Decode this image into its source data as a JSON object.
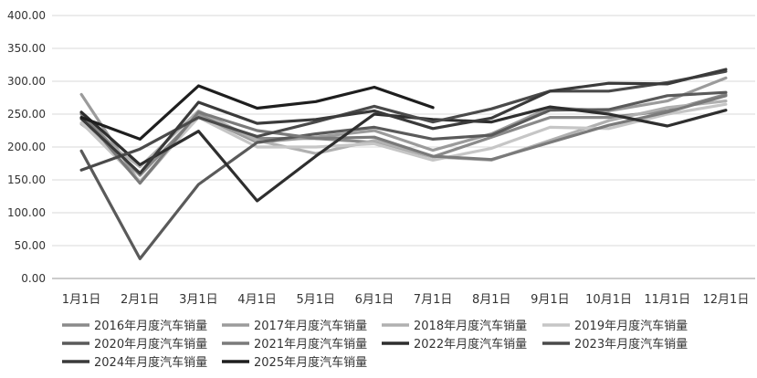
{
  "chart_data": {
    "type": "line",
    "title": "",
    "xlabel": "",
    "ylabel": "",
    "categories": [
      "1月1日",
      "2月1日",
      "3月1日",
      "4月1日",
      "5月1日",
      "6月1日",
      "7月1日",
      "8月1日",
      "9月1日",
      "10月1日",
      "11月1日",
      "12月1日"
    ],
    "ylim": [
      0,
      400
    ],
    "yticks": [
      "0.00",
      "50.00",
      "100.00",
      "150.00",
      "200.00",
      "250.00",
      "300.00",
      "350.00",
      "400.00"
    ],
    "ytick_values": [
      0,
      50,
      100,
      150,
      200,
      250,
      300,
      350,
      400
    ],
    "grid": true,
    "legend_position": "bottom",
    "series": [
      {
        "name": "2016年月度汽车销量",
        "color": "#8a8a8a",
        "values": [
          252,
          157,
          250,
          213,
          213,
          207,
          185,
          215,
          245,
          245,
          255,
          280
        ]
      },
      {
        "name": "2017年月度汽车销量",
        "color": "#9b9b9b",
        "values": [
          280,
          145,
          248,
          207,
          215,
          225,
          195,
          220,
          260,
          255,
          270,
          305
        ]
      },
      {
        "name": "2018年月度汽车销量",
        "color": "#b0b0b0",
        "values": [
          235,
          170,
          255,
          210,
          190,
          210,
          185,
          180,
          210,
          240,
          260,
          270
        ]
      },
      {
        "name": "2019年月度汽车销量",
        "color": "#c6c6c6",
        "values": [
          237,
          148,
          245,
          200,
          200,
          205,
          180,
          198,
          230,
          228,
          250,
          265
        ]
      },
      {
        "name": "2020年月度汽车销量",
        "color": "#5a5a5a",
        "values": [
          194,
          30,
          143,
          207,
          220,
          230,
          212,
          218,
          256,
          257,
          278,
          283
        ]
      },
      {
        "name": "2021年月度汽车销量",
        "color": "#7a7a7a",
        "values": [
          250,
          145,
          253,
          225,
          213,
          215,
          186,
          181,
          207,
          233,
          253,
          278
        ]
      },
      {
        "name": "2022年月度汽车销量",
        "color": "#2e2e2e",
        "values": [
          253,
          173,
          224,
          118,
          186,
          250,
          242,
          238,
          261,
          250,
          232,
          256
        ]
      },
      {
        "name": "2023年月度汽车销量",
        "color": "#4a4a4a",
        "values": [
          165,
          197,
          245,
          216,
          238,
          262,
          238,
          258,
          285,
          285,
          298,
          315
        ]
      },
      {
        "name": "2024年月度汽车销量",
        "color": "#3a3a3a",
        "values": [
          243,
          160,
          268,
          236,
          242,
          255,
          228,
          244,
          285,
          297,
          296,
          318
        ]
      },
      {
        "name": "2025年月度汽车销量",
        "color": "#1e1e1e",
        "values": [
          245,
          212,
          293,
          259,
          269,
          291,
          260,
          null,
          null,
          null,
          null,
          null
        ]
      }
    ]
  }
}
